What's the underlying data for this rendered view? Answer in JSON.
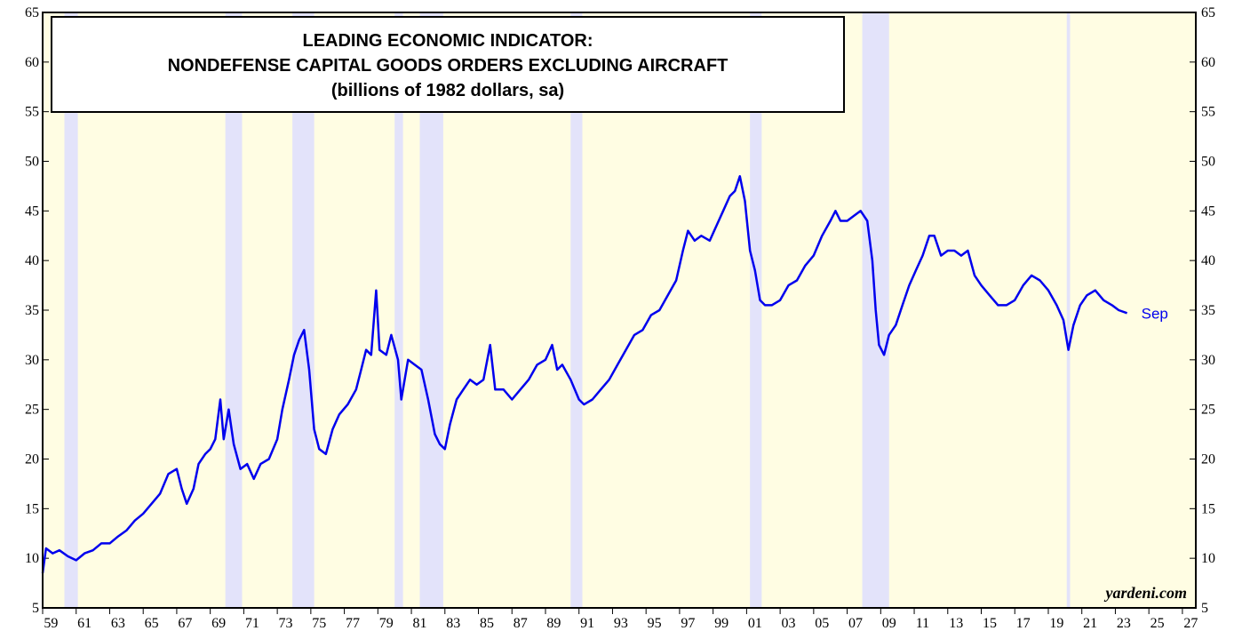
{
  "chart_data": {
    "type": "line",
    "title_lines": [
      "LEADING ECONOMIC INDICATOR:",
      "NONDEFENSE CAPITAL GOODS ORDERS EXCLUDING AIRCRAFT",
      "(billions of 1982 dollars, sa)"
    ],
    "annotations": {
      "last_label": "Sep",
      "source": "yardeni.com"
    },
    "xlim": [
      1959,
      2027.8
    ],
    "ylim": [
      5,
      65
    ],
    "yticks": [
      5,
      10,
      15,
      20,
      25,
      30,
      35,
      40,
      45,
      50,
      55,
      60,
      65
    ],
    "xticks": [
      {
        "value": 1959,
        "label": "59"
      },
      {
        "value": 1961,
        "label": "61"
      },
      {
        "value": 1963,
        "label": "63"
      },
      {
        "value": 1965,
        "label": "65"
      },
      {
        "value": 1967,
        "label": "67"
      },
      {
        "value": 1969,
        "label": "69"
      },
      {
        "value": 1971,
        "label": "71"
      },
      {
        "value": 1973,
        "label": "73"
      },
      {
        "value": 1975,
        "label": "75"
      },
      {
        "value": 1977,
        "label": "77"
      },
      {
        "value": 1979,
        "label": "79"
      },
      {
        "value": 1981,
        "label": "81"
      },
      {
        "value": 1983,
        "label": "83"
      },
      {
        "value": 1985,
        "label": "85"
      },
      {
        "value": 1987,
        "label": "87"
      },
      {
        "value": 1989,
        "label": "89"
      },
      {
        "value": 1991,
        "label": "91"
      },
      {
        "value": 1993,
        "label": "93"
      },
      {
        "value": 1995,
        "label": "95"
      },
      {
        "value": 1997,
        "label": "97"
      },
      {
        "value": 1999,
        "label": "99"
      },
      {
        "value": 2001,
        "label": "01"
      },
      {
        "value": 2003,
        "label": "03"
      },
      {
        "value": 2005,
        "label": "05"
      },
      {
        "value": 2007,
        "label": "07"
      },
      {
        "value": 2009,
        "label": "09"
      },
      {
        "value": 2011,
        "label": "11"
      },
      {
        "value": 2013,
        "label": "13"
      },
      {
        "value": 2015,
        "label": "15"
      },
      {
        "value": 2017,
        "label": "17"
      },
      {
        "value": 2019,
        "label": "19"
      },
      {
        "value": 2021,
        "label": "21"
      },
      {
        "value": 2023,
        "label": "23"
      },
      {
        "value": 2025,
        "label": "25"
      },
      {
        "value": 2027,
        "label": "27"
      }
    ],
    "recessions": [
      [
        1960.3,
        1961.1
      ],
      [
        1969.9,
        1970.9
      ],
      [
        1973.9,
        1975.2
      ],
      [
        1980.0,
        1980.5
      ],
      [
        1981.5,
        1982.9
      ],
      [
        1990.5,
        1991.2
      ],
      [
        2001.2,
        2001.9
      ],
      [
        2007.9,
        2009.5
      ],
      [
        2020.1,
        2020.3
      ]
    ],
    "background_color": "#fffde3",
    "recession_color": "#e3e3fa",
    "series": [
      {
        "name": "Nondefense capital goods orders excluding aircraft",
        "color": "#0000ee",
        "x": [
          1959.0,
          1959.2,
          1959.6,
          1960,
          1960.5,
          1961,
          1961.5,
          1962,
          1962.5,
          1963,
          1963.5,
          1964,
          1964.5,
          1965,
          1965.5,
          1966,
          1966.5,
          1967,
          1967.3,
          1967.6,
          1968,
          1968.3,
          1968.7,
          1969,
          1969.3,
          1969.6,
          1969.8,
          1970.1,
          1970.4,
          1970.8,
          1971.2,
          1971.6,
          1972,
          1972.5,
          1973,
          1973.3,
          1973.7,
          1974,
          1974.3,
          1974.6,
          1974.9,
          1975.2,
          1975.5,
          1975.9,
          1976.3,
          1976.7,
          1977.2,
          1977.7,
          1978,
          1978.3,
          1978.6,
          1978.9,
          1979.1,
          1979.5,
          1979.8,
          1980.2,
          1980.4,
          1980.8,
          1981.2,
          1981.6,
          1982,
          1982.4,
          1982.7,
          1983,
          1983.3,
          1983.7,
          1984.1,
          1984.5,
          1984.9,
          1985.3,
          1985.7,
          1986,
          1986.5,
          1987,
          1987.5,
          1988,
          1988.5,
          1989,
          1989.4,
          1989.7,
          1990,
          1990.5,
          1991,
          1991.3,
          1991.8,
          1992.3,
          1992.8,
          1993.3,
          1993.8,
          1994.3,
          1994.8,
          1995.3,
          1995.8,
          1996.3,
          1996.8,
          1997.2,
          1997.5,
          1997.9,
          1998.3,
          1998.8,
          1999.2,
          1999.6,
          2000,
          2000.3,
          2000.6,
          2000.9,
          2001.2,
          2001.5,
          2001.8,
          2002.1,
          2002.5,
          2003,
          2003.5,
          2004,
          2004.5,
          2005,
          2005.5,
          2006,
          2006.3,
          2006.6,
          2007,
          2007.4,
          2007.8,
          2008.2,
          2008.5,
          2008.7,
          2008.9,
          2009.2,
          2009.5,
          2009.9,
          2010.3,
          2010.7,
          2011.1,
          2011.5,
          2011.9,
          2012.2,
          2012.6,
          2013,
          2013.4,
          2013.8,
          2014.2,
          2014.6,
          2015,
          2015.5,
          2016,
          2016.5,
          2017,
          2017.5,
          2018,
          2018.5,
          2019,
          2019.5,
          2019.9,
          2020.2,
          2020.5,
          2020.9,
          2021.3,
          2021.8,
          2022.3,
          2022.8,
          2023.2,
          2023.7
        ],
        "values": [
          8.5,
          11,
          10.5,
          10.8,
          10.2,
          9.8,
          10.5,
          10.8,
          11.5,
          11.5,
          12.2,
          12.8,
          13.8,
          14.5,
          15.5,
          16.5,
          18.5,
          19,
          17,
          15.5,
          17,
          19.5,
          20.5,
          21,
          22,
          26,
          22,
          25,
          21.5,
          19,
          19.5,
          18,
          19.5,
          20,
          22,
          25,
          28,
          30.5,
          32,
          33,
          29,
          23,
          21,
          20.5,
          23,
          24.5,
          25.5,
          27,
          29,
          31,
          30.5,
          37,
          31,
          30.5,
          32.5,
          30,
          26,
          30,
          29.5,
          29,
          26,
          22.5,
          21.5,
          21,
          23.5,
          26,
          27,
          28,
          27.5,
          28,
          31.5,
          27,
          27,
          26,
          27,
          28,
          29.5,
          30,
          31.5,
          29,
          29.5,
          28,
          26,
          25.5,
          26,
          27,
          28,
          29.5,
          31,
          32.5,
          33,
          34.5,
          35,
          36.5,
          38,
          41,
          43,
          42,
          42.5,
          42,
          43.5,
          45,
          46.5,
          47,
          48.5,
          46,
          41,
          39,
          36,
          35.5,
          35.5,
          36,
          37.5,
          38,
          39.5,
          40.5,
          42.5,
          44,
          45,
          44,
          44,
          44.5,
          45,
          44,
          40,
          35,
          31.5,
          30.5,
          32.5,
          33.5,
          35.5,
          37.5,
          39,
          40.5,
          42.5,
          42.5,
          40.5,
          41,
          41,
          40.5,
          41,
          38.5,
          37.5,
          36.5,
          35.5,
          35.5,
          36,
          37.5,
          38.5,
          38,
          37,
          35.5,
          34,
          31,
          33.5,
          35.5,
          36.5,
          37,
          36,
          35.5,
          35,
          34.7
        ]
      }
    ]
  }
}
